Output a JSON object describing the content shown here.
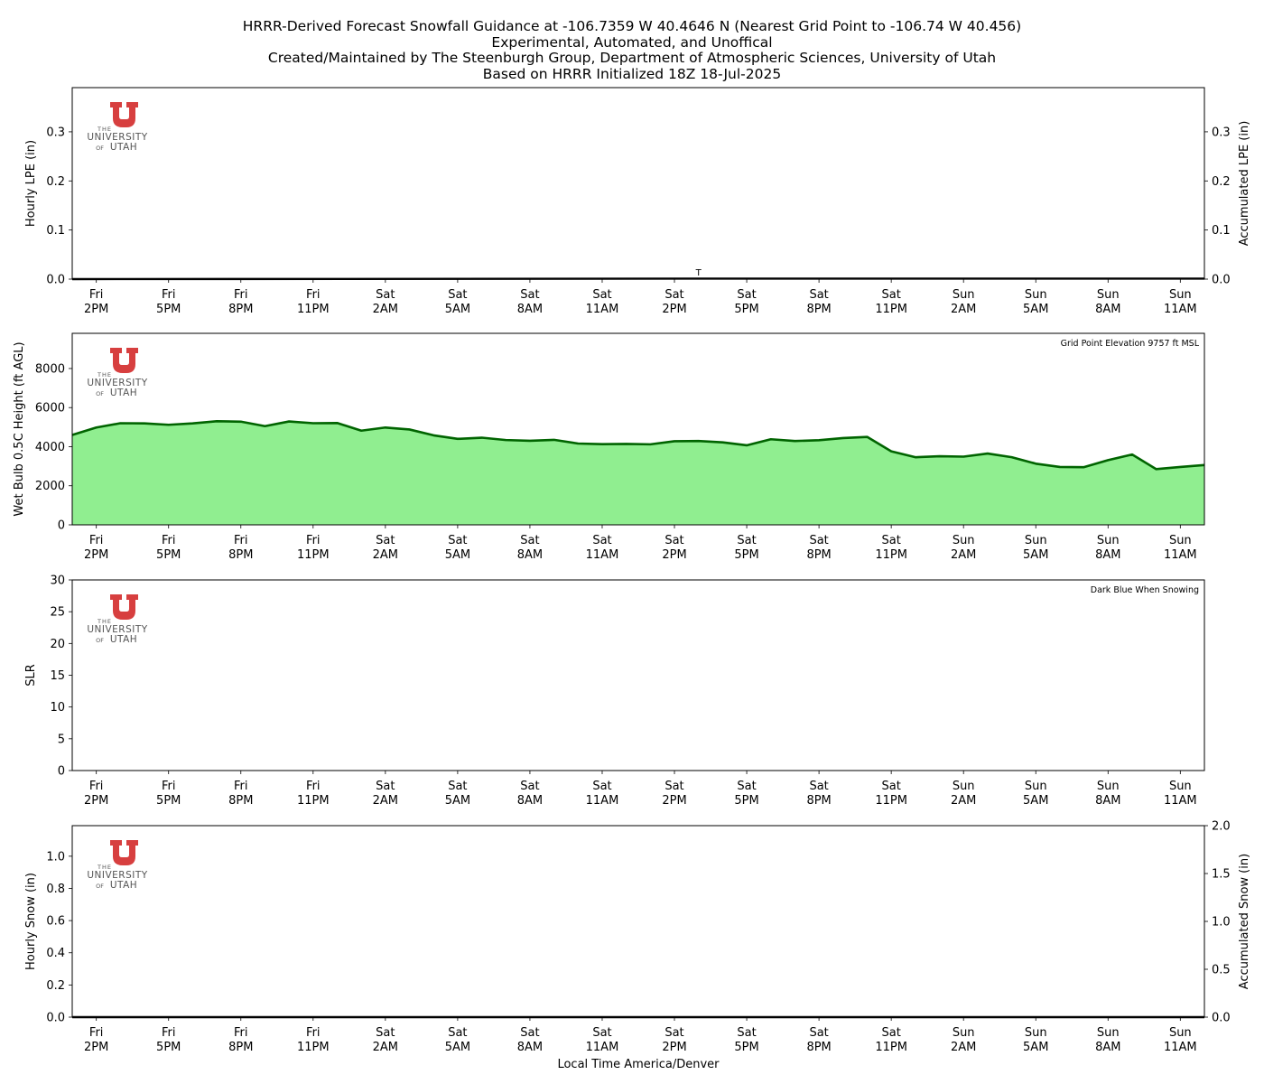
{
  "title_lines": [
    "HRRR-Derived Forecast Snowfall Guidance at -106.7359 W 40.4646 N (Nearest Grid Point to -106.74 W 40.456)",
    "Experimental, Automated, and Unoffical",
    "Created/Maintained by The Steenburgh Group, Department of Atmospheric Sciences, University of Utah",
    "Based on HRRR Initialized 18Z 18-Jul-2025"
  ],
  "logo": {
    "the": "THE",
    "university": "UNIVERSITY",
    "of": "OF",
    "utah": "UTAH",
    "color": "#d73f3f"
  },
  "chart_data": {
    "type": "panels",
    "xlabel": "Local Time America/Denver",
    "x_ticks": [
      [
        "Fri",
        "2PM"
      ],
      [
        "Fri",
        "5PM"
      ],
      [
        "Fri",
        "8PM"
      ],
      [
        "Fri",
        "11PM"
      ],
      [
        "Sat",
        "2AM"
      ],
      [
        "Sat",
        "5AM"
      ],
      [
        "Sat",
        "8AM"
      ],
      [
        "Sat",
        "11AM"
      ],
      [
        "Sat",
        "2PM"
      ],
      [
        "Sat",
        "5PM"
      ],
      [
        "Sat",
        "8PM"
      ],
      [
        "Sat",
        "11PM"
      ],
      [
        "Sun",
        "2AM"
      ],
      [
        "Sun",
        "5AM"
      ],
      [
        "Sun",
        "8AM"
      ],
      [
        "Sun",
        "11AM"
      ]
    ],
    "x_hours_range": [
      -1,
      46
    ],
    "panels": [
      {
        "id": "lpe",
        "type": "bar",
        "ylabel": "Hourly LPE (in)",
        "ylabel_right": "Accumulated LPE (in)",
        "ylim": [
          0,
          0.39
        ],
        "yticks": [
          "0.0",
          "0.1",
          "0.2",
          "0.3"
        ],
        "ytick_values": [
          0,
          0.1,
          0.2,
          0.3
        ],
        "right_ylim": [
          0,
          0.39
        ],
        "right_yticks": [
          "0.0",
          "0.1",
          "0.2",
          "0.3"
        ],
        "right_ytick_values": [
          0,
          0.1,
          0.2,
          0.3
        ],
        "hourly": [],
        "accumulated_line": {
          "x": [
            -1,
            25,
            46
          ],
          "y": [
            0,
            0.001,
            0.001
          ]
        },
        "annotation": {
          "text": "T",
          "x_hour": 25,
          "value": 0.0
        }
      },
      {
        "id": "wetbulb",
        "type": "area",
        "ylabel": "Wet Bulb 0.5C Height (ft AGL)",
        "ylim": [
          0,
          9800
        ],
        "yticks": [
          "0",
          "2000",
          "4000",
          "6000",
          "8000"
        ],
        "ytick_values": [
          0,
          2000,
          4000,
          6000,
          8000
        ],
        "note": "Grid Point Elevation 9757 ft MSL",
        "fill_color": "#90ee90",
        "line_color": "#006400",
        "series": {
          "x_hours": [
            -1,
            0,
            1,
            2,
            3,
            4,
            5,
            6,
            7,
            8,
            9,
            10,
            11,
            12,
            13,
            14,
            15,
            16,
            17,
            18,
            19,
            20,
            21,
            22,
            23,
            24,
            25,
            26,
            27,
            28,
            29,
            30,
            31,
            32,
            33,
            34,
            35,
            36,
            37,
            38,
            39,
            40,
            41,
            42,
            43,
            44,
            45,
            46
          ],
          "values": [
            4600,
            4980,
            5200,
            5190,
            5120,
            5190,
            5300,
            5280,
            5050,
            5290,
            5200,
            5210,
            4820,
            4980,
            4880,
            4580,
            4400,
            4460,
            4340,
            4300,
            4350,
            4160,
            4130,
            4140,
            4120,
            4280,
            4290,
            4220,
            4070,
            4380,
            4290,
            4330,
            4440,
            4500,
            3760,
            3460,
            3510,
            3490,
            3650,
            3460,
            3130,
            2960,
            2950,
            3310,
            3600,
            2850,
            2960,
            3060
          ]
        }
      },
      {
        "id": "slr",
        "type": "bar",
        "ylabel": "SLR",
        "ylim": [
          0,
          30
        ],
        "yticks": [
          "0",
          "5",
          "10",
          "15",
          "20",
          "25",
          "30"
        ],
        "ytick_values": [
          0,
          5,
          10,
          15,
          20,
          25,
          30
        ],
        "note": "Dark Blue When Snowing",
        "values": []
      },
      {
        "id": "snow",
        "type": "bar",
        "ylabel": "Hourly Snow (in)",
        "ylabel_right": "Accumulated Snow (in)",
        "ylim": [
          0,
          1.19
        ],
        "yticks": [
          "0.0",
          "0.2",
          "0.4",
          "0.6",
          "0.8",
          "1.0"
        ],
        "ytick_values": [
          0,
          0.2,
          0.4,
          0.6,
          0.8,
          1.0
        ],
        "right_ylim": [
          0,
          2.0
        ],
        "right_yticks": [
          "0.0",
          "0.5",
          "1.0",
          "1.5",
          "2.0"
        ],
        "right_ytick_values": [
          0,
          0.5,
          1.0,
          1.5,
          2.0
        ],
        "hourly": [],
        "accumulated_line": {
          "x": [
            -1,
            46
          ],
          "y": [
            0,
            0
          ]
        }
      }
    ]
  }
}
